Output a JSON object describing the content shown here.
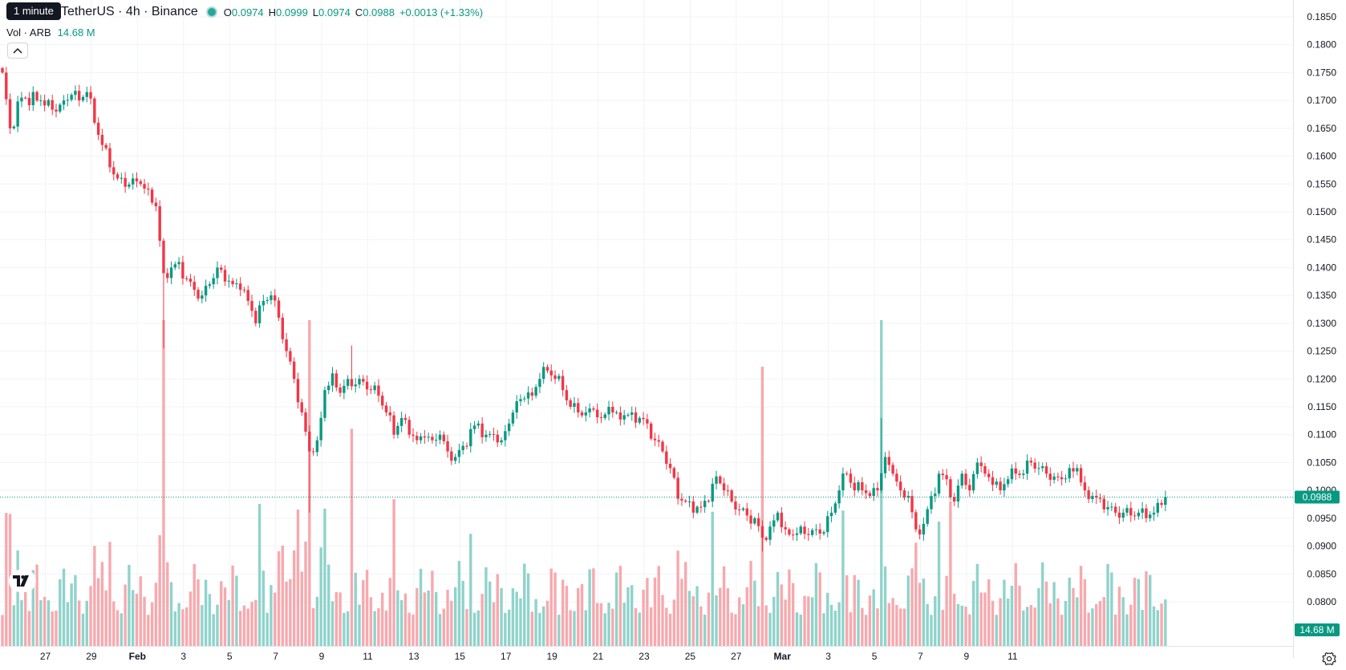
{
  "legend": {
    "symbol": "TetherUS · 4h · Binance",
    "tooltip": "1 minute",
    "open_label": "O",
    "open": "0.0974",
    "high_label": "H",
    "high": "0.0999",
    "low_label": "L",
    "low": "0.0974",
    "close_label": "C",
    "close": "0.0988",
    "change": "+0.0013 (+1.33%)",
    "vol_label": "Vol · ARB",
    "vol_value": "14.68 M"
  },
  "icons": {
    "collapse": "chevron-up-icon",
    "logo": "tradingview-logo-icon",
    "settings": "gear-icon"
  },
  "colors": {
    "up": "#089981",
    "down": "#f23645",
    "vol_up": "#8fd3cb",
    "vol_down": "#f7a9ae",
    "grid": "#f0f3fa",
    "axis_text": "#131722",
    "last_price": "#089981"
  },
  "chart_data": {
    "type": "candlestick",
    "interval": "4h",
    "ylim": [
      0.08,
      0.185
    ],
    "y_ticks": [
      "0.0800",
      "0.0850",
      "0.0900",
      "0.0950",
      "0.1000",
      "0.1050",
      "0.1100",
      "0.1150",
      "0.1200",
      "0.1250",
      "0.1300",
      "0.1350",
      "0.1400",
      "0.1450",
      "0.1500",
      "0.1550",
      "0.1600",
      "0.1650",
      "0.1700",
      "0.1750",
      "0.1800",
      "0.1850"
    ],
    "x_ticks": [
      "27",
      "29",
      "Feb",
      "3",
      "5",
      "7",
      "9",
      "11",
      "13",
      "15",
      "17",
      "19",
      "21",
      "23",
      "25",
      "27",
      "Mar",
      "3",
      "5",
      "7",
      "9",
      "11"
    ],
    "x_tick_bold": [
      "Feb",
      "Mar"
    ],
    "last_price": 0.0988,
    "last_price_label": "0.0988",
    "last_volume_label": "14.68 M",
    "anchors": [
      [
        0,
        0.175
      ],
      [
        2,
        0.165
      ],
      [
        5,
        0.1705
      ],
      [
        10,
        0.17
      ],
      [
        14,
        0.168
      ],
      [
        18,
        0.171
      ],
      [
        20,
        0.17
      ],
      [
        22,
        0.1715
      ],
      [
        24,
        0.166
      ],
      [
        26,
        0.162
      ],
      [
        28,
        0.158
      ],
      [
        30,
        0.156
      ],
      [
        32,
        0.1545
      ],
      [
        34,
        0.156
      ],
      [
        36,
        0.155
      ],
      [
        38,
        0.154
      ],
      [
        40,
        0.151
      ],
      [
        42,
        0.139
      ],
      [
        44,
        0.14
      ],
      [
        46,
        0.141
      ],
      [
        48,
        0.138
      ],
      [
        50,
        0.136
      ],
      [
        52,
        0.135
      ],
      [
        54,
        0.137
      ],
      [
        56,
        0.14
      ],
      [
        58,
        0.1375
      ],
      [
        60,
        0.137
      ],
      [
        62,
        0.136
      ],
      [
        64,
        0.134
      ],
      [
        66,
        0.13
      ],
      [
        68,
        0.134
      ],
      [
        70,
        0.135
      ],
      [
        72,
        0.131
      ],
      [
        74,
        0.125
      ],
      [
        76,
        0.12
      ],
      [
        78,
        0.114
      ],
      [
        80,
        0.107
      ],
      [
        82,
        0.109
      ],
      [
        84,
        0.118
      ],
      [
        86,
        0.121
      ],
      [
        88,
        0.1175
      ],
      [
        90,
        0.12
      ],
      [
        92,
        0.119
      ],
      [
        94,
        0.1195
      ],
      [
        96,
        0.118
      ],
      [
        98,
        0.117
      ],
      [
        100,
        0.114
      ],
      [
        102,
        0.11
      ],
      [
        104,
        0.113
      ],
      [
        106,
        0.11
      ],
      [
        108,
        0.109
      ],
      [
        110,
        0.1095
      ],
      [
        112,
        0.109
      ],
      [
        114,
        0.11
      ],
      [
        116,
        0.107
      ],
      [
        118,
        0.106
      ],
      [
        120,
        0.108
      ],
      [
        122,
        0.111
      ],
      [
        124,
        0.112
      ],
      [
        126,
        0.11
      ],
      [
        128,
        0.11
      ],
      [
        130,
        0.109
      ],
      [
        132,
        0.112
      ],
      [
        134,
        0.116
      ],
      [
        136,
        0.1165
      ],
      [
        138,
        0.117
      ],
      [
        140,
        0.12
      ],
      [
        142,
        0.1215
      ],
      [
        144,
        0.12
      ],
      [
        146,
        0.118
      ],
      [
        148,
        0.115
      ],
      [
        150,
        0.114
      ],
      [
        152,
        0.114
      ],
      [
        154,
        0.1145
      ],
      [
        156,
        0.113
      ],
      [
        158,
        0.115
      ],
      [
        160,
        0.114
      ],
      [
        162,
        0.1135
      ],
      [
        164,
        0.114
      ],
      [
        166,
        0.113
      ],
      [
        168,
        0.112
      ],
      [
        170,
        0.109
      ],
      [
        172,
        0.107
      ],
      [
        174,
        0.104
      ],
      [
        176,
        0.0985
      ],
      [
        178,
        0.098
      ],
      [
        180,
        0.096
      ],
      [
        182,
        0.097
      ],
      [
        184,
        0.098
      ],
      [
        186,
        0.1025
      ],
      [
        188,
        0.1
      ],
      [
        190,
        0.098
      ],
      [
        192,
        0.0965
      ],
      [
        194,
        0.0955
      ],
      [
        196,
        0.095
      ],
      [
        198,
        0.0915
      ],
      [
        200,
        0.0935
      ],
      [
        202,
        0.096
      ],
      [
        204,
        0.093
      ],
      [
        206,
        0.092
      ],
      [
        208,
        0.0935
      ],
      [
        210,
        0.092
      ],
      [
        212,
        0.093
      ],
      [
        214,
        0.0925
      ],
      [
        216,
        0.096
      ],
      [
        218,
        0.1
      ],
      [
        220,
        0.103
      ],
      [
        222,
        0.1
      ],
      [
        224,
        0.1
      ],
      [
        226,
        0.099
      ],
      [
        228,
        0.1
      ],
      [
        230,
        0.106
      ],
      [
        232,
        0.103
      ],
      [
        234,
        0.1
      ],
      [
        236,
        0.099
      ],
      [
        238,
        0.093
      ],
      [
        240,
        0.094
      ],
      [
        242,
        0.099
      ],
      [
        244,
        0.103
      ],
      [
        246,
        0.102
      ],
      [
        248,
        0.098
      ],
      [
        250,
        0.103
      ],
      [
        252,
        0.1
      ],
      [
        254,
        0.105
      ],
      [
        256,
        0.103
      ],
      [
        258,
        0.101
      ],
      [
        260,
        0.1
      ],
      [
        262,
        0.102
      ],
      [
        264,
        0.103
      ],
      [
        266,
        0.103
      ],
      [
        268,
        0.105
      ],
      [
        270,
        0.104
      ],
      [
        272,
        0.103
      ],
      [
        274,
        0.1025
      ],
      [
        276,
        0.102
      ],
      [
        278,
        0.104
      ],
      [
        280,
        0.104
      ],
      [
        282,
        0.1
      ],
      [
        284,
        0.099
      ],
      [
        286,
        0.0985
      ],
      [
        288,
        0.097
      ],
      [
        290,
        0.096
      ],
      [
        292,
        0.096
      ],
      [
        294,
        0.0955
      ],
      [
        296,
        0.096
      ],
      [
        298,
        0.095
      ],
      [
        300,
        0.096
      ],
      [
        302,
        0.0974
      ],
      [
        303,
        0.0988
      ]
    ],
    "spikes": [
      {
        "index": 42,
        "low": 0.1255,
        "vol": 0.42
      },
      {
        "index": 80,
        "low": 0.096,
        "vol": 0.42
      },
      {
        "index": 91,
        "high": 0.126,
        "vol": 0.28
      },
      {
        "index": 198,
        "low": 0.089,
        "vol": 0.36
      },
      {
        "index": 229,
        "high": 0.113,
        "vol": 0.42
      }
    ],
    "volume_scale": [
      0,
      0.45
    ]
  }
}
